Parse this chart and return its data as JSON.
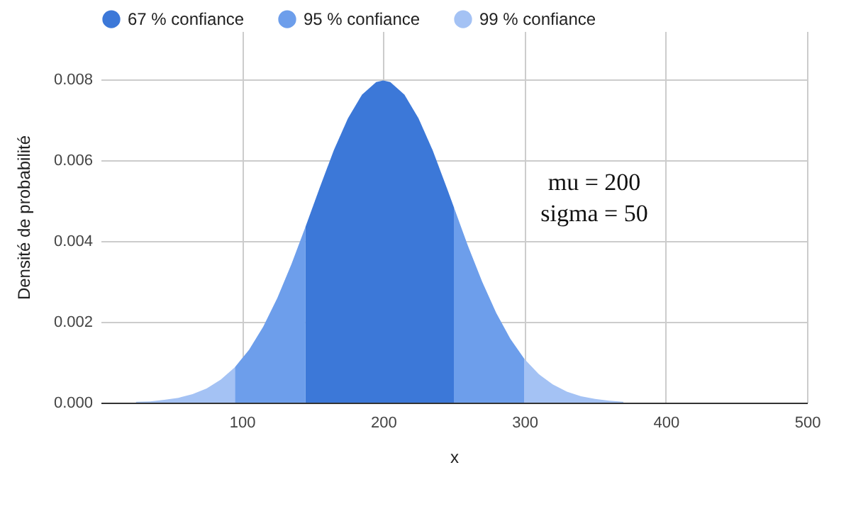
{
  "chart_data": {
    "type": "area",
    "xlabel": "x",
    "ylabel": "Densité de probabilité",
    "x": [
      25,
      35,
      45,
      55,
      65,
      75,
      85,
      95,
      105,
      115,
      125,
      135,
      145,
      155,
      165,
      175,
      185,
      195,
      200,
      205,
      215,
      225,
      235,
      245,
      250,
      260,
      270,
      280,
      290,
      300,
      310,
      320,
      330,
      340,
      350,
      360,
      370
    ],
    "series": [
      {
        "name": "67 % confiance",
        "color": "#3c78d8",
        "values": [
          null,
          null,
          null,
          null,
          null,
          null,
          null,
          null,
          null,
          null,
          null,
          null,
          0.00436,
          0.00532,
          0.00625,
          0.00704,
          0.00763,
          0.00794,
          0.00798,
          0.00794,
          0.00763,
          0.00704,
          0.00625,
          0.00532,
          0.00484,
          null,
          null,
          null,
          null,
          null,
          null,
          null,
          null,
          null,
          null,
          null,
          null
        ]
      },
      {
        "name": "95 % confiance",
        "color": "#6d9eeb",
        "values": [
          null,
          null,
          null,
          null,
          null,
          null,
          null,
          0.00088,
          0.00131,
          0.00188,
          0.00259,
          0.00343,
          0.00436,
          null,
          null,
          null,
          null,
          null,
          null,
          null,
          null,
          null,
          null,
          null,
          0.00484,
          0.00388,
          0.003,
          0.00222,
          0.00158,
          0.00108,
          null,
          null,
          null,
          null,
          null,
          null,
          null
        ]
      },
      {
        "name": "99 % confiance",
        "color": "#a4c2f4",
        "values": [
          2e-05,
          3e-05,
          7e-05,
          0.00012,
          0.00021,
          0.00035,
          0.00057,
          0.00088,
          null,
          null,
          null,
          null,
          null,
          null,
          null,
          null,
          null,
          null,
          null,
          null,
          null,
          null,
          null,
          null,
          null,
          null,
          null,
          null,
          null,
          0.00108,
          0.00071,
          0.00045,
          0.00027,
          0.00016,
          9e-05,
          5e-05,
          2e-05
        ]
      }
    ],
    "xlim": [
      0,
      500
    ],
    "xticks": [
      100,
      200,
      300,
      400,
      500
    ],
    "ylim": [
      0,
      0.0092
    ],
    "yticks": [
      {
        "value": 0,
        "label": "0.000"
      },
      {
        "value": 0.002,
        "label": "0.002"
      },
      {
        "value": 0.004,
        "label": "0.004"
      },
      {
        "value": 0.006,
        "label": "0.006"
      },
      {
        "value": 0.008,
        "label": "0.008"
      }
    ],
    "grid": true,
    "legend": "top",
    "annotations": [
      "mu = 200",
      "sigma = 50"
    ]
  }
}
